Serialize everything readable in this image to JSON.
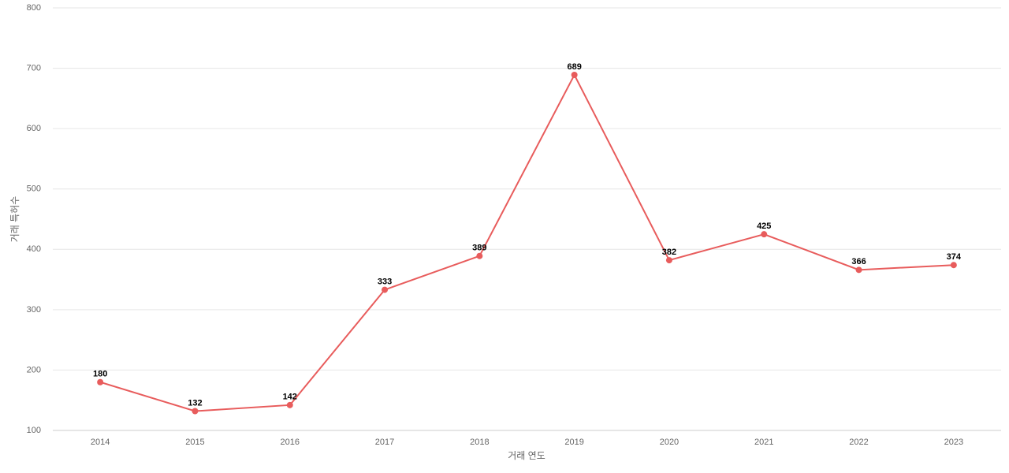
{
  "chart_data": {
    "type": "line",
    "x_label": "거래 연도",
    "y_label": "거래 특허수",
    "categories": [
      "2014",
      "2015",
      "2016",
      "2017",
      "2018",
      "2019",
      "2020",
      "2021",
      "2022",
      "2023"
    ],
    "series": [
      {
        "name": "거래 특허수",
        "color": "#e85c5c",
        "values": [
          180,
          132,
          142,
          333,
          389,
          689,
          382,
          425,
          366,
          374
        ]
      }
    ],
    "ylim": [
      100,
      800
    ],
    "yticks": [
      100,
      200,
      300,
      400,
      500,
      600,
      700,
      800
    ],
    "grid": true
  }
}
